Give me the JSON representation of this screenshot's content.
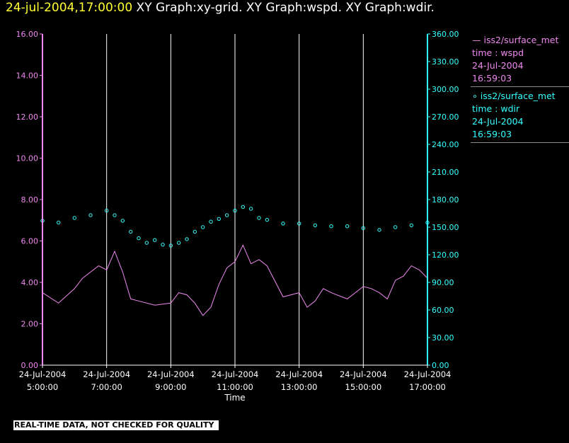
{
  "title": {
    "timestamp": "24-jul-2004,17:00:00",
    "graphs": "XY Graph:xy-grid.  XY Graph:wspd.  XY Graph:wdir."
  },
  "legend": [
    {
      "marker": "—",
      "name": "iss2/surface_met",
      "label": "time : wspd",
      "date": "24-Jul-2004",
      "time": "16:59:03",
      "color": "#ee88ee"
    },
    {
      "marker": "∘",
      "name": "iss2/surface_met",
      "label": "time : wdir",
      "date": "24-Jul-2004",
      "time": "16:59:03",
      "color": "#33ffff"
    }
  ],
  "notice": "REAL-TIME DATA, NOT CHECKED FOR QUALITY",
  "chart_data": {
    "type": "line",
    "xlabel": "Time",
    "x_ticks": [
      {
        "date": "24-Jul-2004",
        "time": "5:00:00"
      },
      {
        "date": "24-Jul-2004",
        "time": "7:00:00"
      },
      {
        "date": "24-Jul-2004",
        "time": "9:00:00"
      },
      {
        "date": "24-Jul-2004",
        "time": "11:00:00"
      },
      {
        "date": "24-Jul-2004",
        "time": "13:00:00"
      },
      {
        "date": "24-Jul-2004",
        "time": "15:00:00"
      },
      {
        "date": "24-Jul-2004",
        "time": "17:00:00"
      }
    ],
    "xlim": [
      "24-Jul-2004 05:00",
      "24-Jul-2004 17:00"
    ],
    "vertical_grid": true,
    "y_left": {
      "ticks": [
        "0.00",
        "2.00",
        "4.00",
        "6.00",
        "8.00",
        "10.00",
        "12.00",
        "14.00",
        "16.00"
      ],
      "ylim": [
        0,
        16
      ],
      "color": "#ee88ee"
    },
    "y_right": {
      "ticks": [
        "0.00",
        "30.00",
        "60.00",
        "90.00",
        "120.00",
        "150.00",
        "180.00",
        "210.00",
        "240.00",
        "270.00",
        "300.00",
        "330.00",
        "360.00"
      ],
      "ylim": [
        0,
        360
      ],
      "color": "#33ffff"
    },
    "series": [
      {
        "name": "time : wspd",
        "axis": "left",
        "style": "line",
        "color": "#ee88ee",
        "x": [
          "05:00",
          "05:30",
          "06:00",
          "06:15",
          "06:30",
          "06:45",
          "07:00",
          "07:15",
          "07:30",
          "07:45",
          "08:00",
          "08:30",
          "09:00",
          "09:15",
          "09:30",
          "09:45",
          "10:00",
          "10:15",
          "10:30",
          "10:45",
          "11:00",
          "11:15",
          "11:30",
          "11:45",
          "12:00",
          "12:30",
          "13:00",
          "13:15",
          "13:30",
          "13:45",
          "14:00",
          "14:30",
          "15:00",
          "15:15",
          "15:30",
          "15:45",
          "16:00",
          "16:15",
          "16:30",
          "16:45",
          "17:00"
        ],
        "y": [
          3.5,
          3.0,
          3.7,
          4.2,
          4.5,
          4.8,
          4.6,
          5.5,
          4.5,
          3.2,
          3.1,
          2.9,
          3.0,
          3.5,
          3.4,
          3.0,
          2.4,
          2.8,
          3.9,
          4.7,
          5.0,
          5.8,
          4.9,
          5.1,
          4.8,
          3.3,
          3.5,
          2.8,
          3.1,
          3.7,
          3.5,
          3.2,
          3.8,
          3.7,
          3.5,
          3.2,
          4.1,
          4.3,
          4.8,
          4.6,
          4.2
        ]
      },
      {
        "name": "time : wdir",
        "axis": "right",
        "style": "markers",
        "color": "#33ffff",
        "x": [
          "05:00",
          "05:30",
          "06:00",
          "06:30",
          "07:00",
          "07:15",
          "07:30",
          "07:45",
          "08:00",
          "08:15",
          "08:30",
          "08:45",
          "09:00",
          "09:15",
          "09:30",
          "09:45",
          "10:00",
          "10:15",
          "10:30",
          "10:45",
          "11:00",
          "11:15",
          "11:30",
          "11:45",
          "12:00",
          "12:30",
          "13:00",
          "13:30",
          "14:00",
          "14:30",
          "15:00",
          "15:30",
          "16:00",
          "16:30",
          "17:00"
        ],
        "y": [
          157,
          155,
          160,
          163,
          168,
          163,
          157,
          145,
          138,
          133,
          136,
          131,
          130,
          133,
          137,
          145,
          150,
          156,
          159,
          163,
          168,
          172,
          170,
          160,
          158,
          154,
          154,
          152,
          151,
          151,
          149,
          147,
          150,
          152,
          155
        ]
      }
    ]
  }
}
